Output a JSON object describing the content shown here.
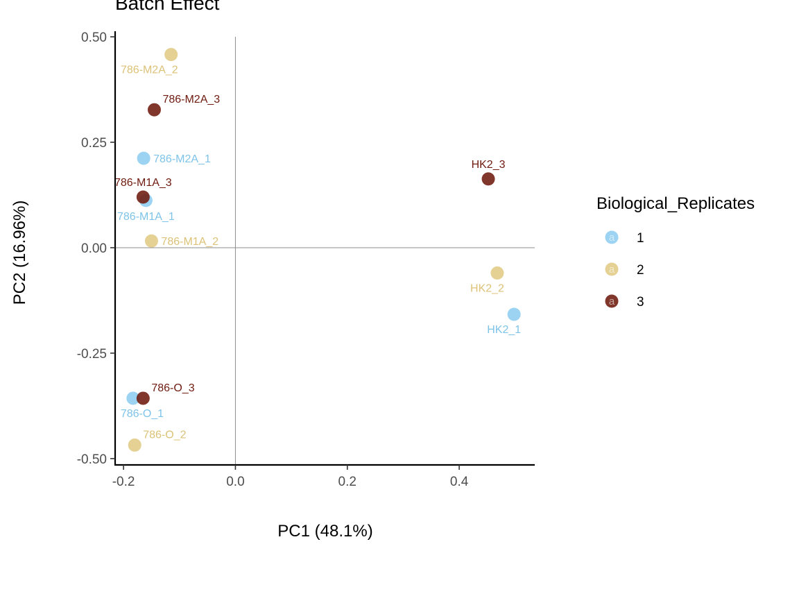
{
  "chart_data": {
    "type": "scatter",
    "title": "Batch Effect",
    "xlabel": "PC1 (48.1%)",
    "ylabel": "PC2 (16.96%)",
    "xlim": [
      -0.215,
      0.535
    ],
    "ylim": [
      -0.515,
      0.505
    ],
    "x_ticks": [
      -0.2,
      0.0,
      0.2,
      0.4
    ],
    "x_tick_labels": [
      "-0.2",
      "0.0",
      "0.2",
      "0.4"
    ],
    "y_ticks": [
      -0.5,
      -0.25,
      0.0,
      0.25,
      0.5
    ],
    "y_tick_labels": [
      "-0.50",
      "-0.25",
      "0.00",
      "0.25",
      "0.50"
    ],
    "reference_lines": {
      "x": 0,
      "y": 0
    },
    "grid": false,
    "legend": {
      "title": "Biological_Replicates",
      "placement": "right",
      "key_glyph": "a",
      "entries": [
        {
          "label": "1",
          "color": "#8ecdf0"
        },
        {
          "label": "2",
          "color": "#e0cb84"
        },
        {
          "label": "3",
          "color": "#6e1a0e"
        }
      ]
    },
    "label_colors": {
      "1": "#7ec3e8",
      "2": "#dcc277",
      "3": "#6e1a0e"
    },
    "points": [
      {
        "label": "786-M2A_2",
        "x": -0.115,
        "y": 0.458,
        "group": "2",
        "label_pos": "below-left"
      },
      {
        "label": "786-M2A_3",
        "x": -0.145,
        "y": 0.327,
        "group": "3",
        "label_pos": "above-right"
      },
      {
        "label": "786-M2A_1",
        "x": -0.164,
        "y": 0.212,
        "group": "1",
        "label_pos": "right"
      },
      {
        "label": "786-M1A_1",
        "x": -0.16,
        "y": 0.112,
        "group": "1",
        "label_pos": "below"
      },
      {
        "label": "786-M1A_3",
        "x": -0.165,
        "y": 0.12,
        "group": "3",
        "label_pos": "above"
      },
      {
        "label": "786-M1A_2",
        "x": -0.15,
        "y": 0.016,
        "group": "2",
        "label_pos": "right"
      },
      {
        "label": "HK2_3",
        "x": 0.452,
        "y": 0.163,
        "group": "3",
        "label_pos": "above"
      },
      {
        "label": "HK2_2",
        "x": 0.468,
        "y": -0.06,
        "group": "2",
        "label_pos": "below-left"
      },
      {
        "label": "HK2_1",
        "x": 0.498,
        "y": -0.158,
        "group": "1",
        "label_pos": "below-left"
      },
      {
        "label": "786-O_1",
        "x": -0.183,
        "y": -0.357,
        "group": "1",
        "label_pos": "below-right"
      },
      {
        "label": "786-O_3",
        "x": -0.165,
        "y": -0.357,
        "group": "3",
        "label_pos": "above-right"
      },
      {
        "label": "786-O_2",
        "x": -0.18,
        "y": -0.468,
        "group": "2",
        "label_pos": "above-right"
      }
    ]
  }
}
